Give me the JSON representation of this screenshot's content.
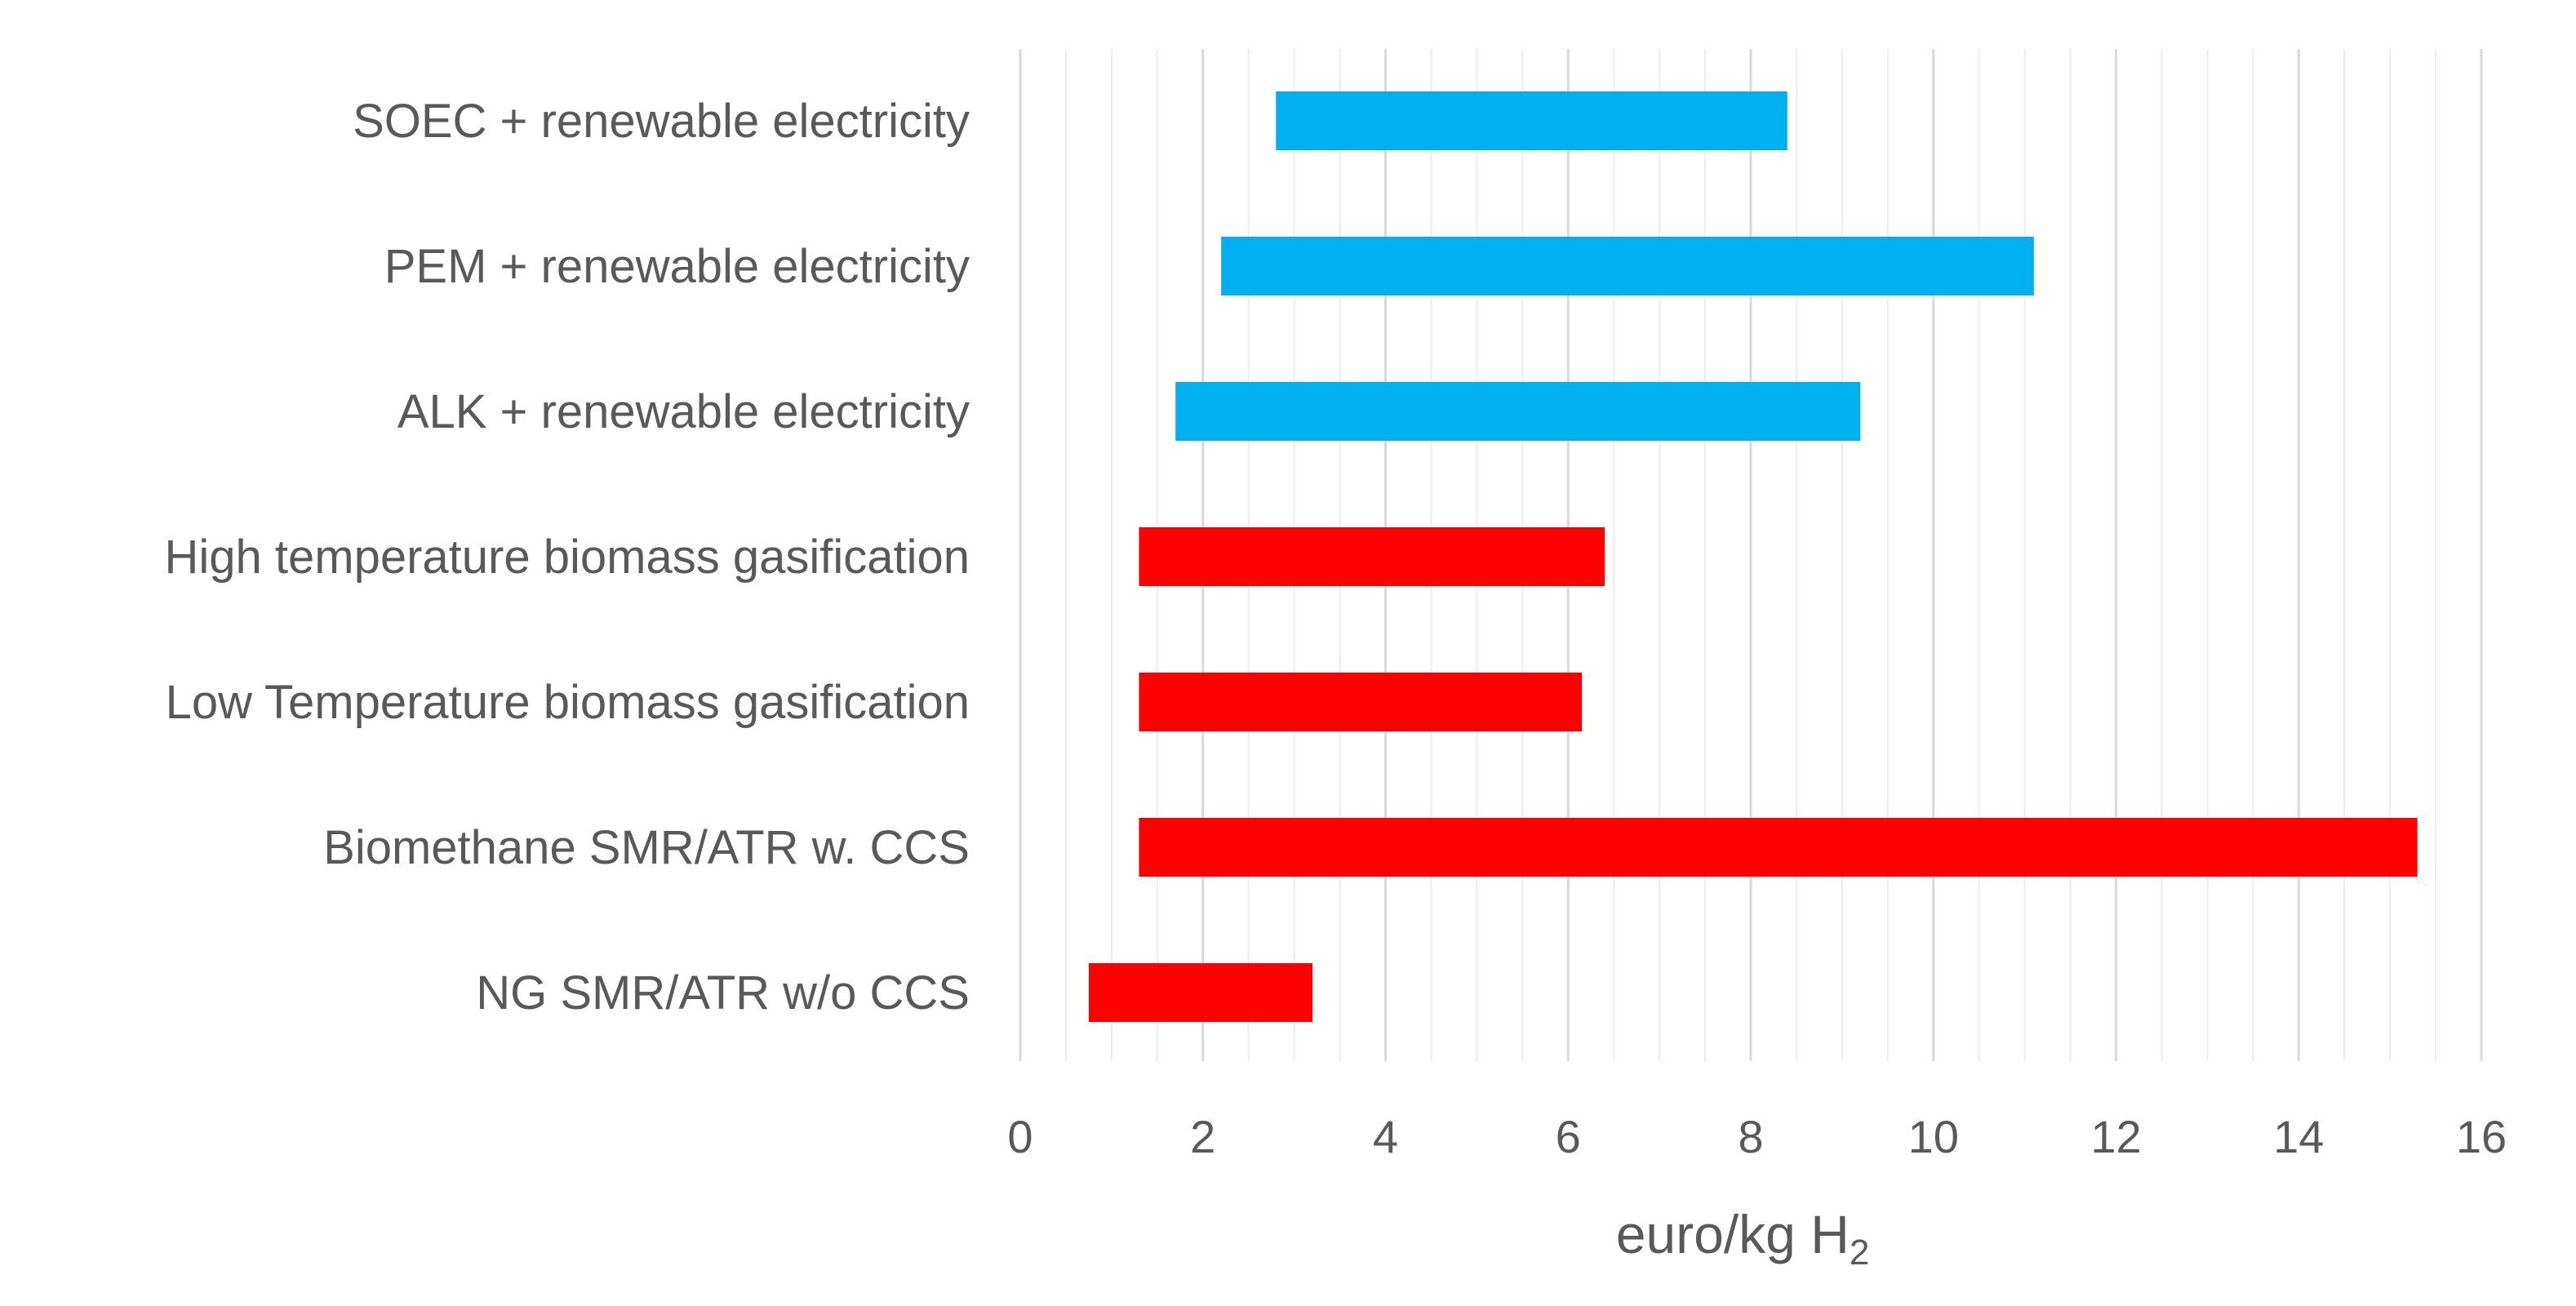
{
  "chart_data": {
    "type": "bar",
    "orientation": "horizontal-range",
    "title": "",
    "xlabel": "euro/kg H2",
    "xlabel_parts": {
      "main": "euro/kg H",
      "subscript": "2"
    },
    "ylabel": "",
    "xlim": [
      0,
      16
    ],
    "x_ticks": [
      "0",
      "2",
      "4",
      "6",
      "8",
      "10",
      "12",
      "14",
      "16"
    ],
    "x_tick_values": [
      0,
      2,
      4,
      6,
      8,
      10,
      12,
      14,
      16
    ],
    "minor_grid_step": 0.5,
    "grid": true,
    "legend": "none",
    "categories": [
      {
        "label": "SOEC + renewable electricity",
        "min": 2.8,
        "max": 8.4,
        "color": "#00b0f0"
      },
      {
        "label": "PEM + renewable electricity",
        "min": 2.2,
        "max": 11.1,
        "color": "#00b0f0"
      },
      {
        "label": "ALK + renewable electricity",
        "min": 1.7,
        "max": 9.2,
        "color": "#00b0f0"
      },
      {
        "label": "High temperature biomass gasification",
        "min": 1.3,
        "max": 6.4,
        "color": "#ff0000"
      },
      {
        "label": "Low Temperature biomass gasification",
        "min": 1.3,
        "max": 6.15,
        "color": "#ff0000"
      },
      {
        "label": "Biomethane SMR/ATR w. CCS",
        "min": 1.3,
        "max": 15.3,
        "color": "#ff0000"
      },
      {
        "label": "NG SMR/ATR w/o CCS",
        "min": 0.75,
        "max": 3.2,
        "color": "#ff0000"
      }
    ]
  }
}
